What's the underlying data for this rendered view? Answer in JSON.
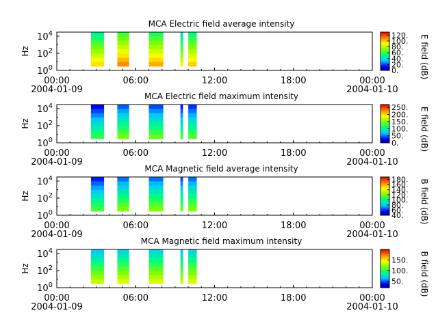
{
  "chart_data": [
    {
      "type": "heatmap",
      "title": "MCA  Electric field average intensity",
      "ylabel": "Hz",
      "ylim": [
        1,
        30000
      ],
      "yscale": "log",
      "y_ticks": [
        {
          "base": "10",
          "exp": "0"
        },
        {
          "base": "10",
          "exp": "2"
        },
        {
          "base": "10",
          "exp": "4"
        }
      ],
      "x_ticks": [
        "00:00",
        "06:00",
        "12:00",
        "18:00",
        "00:00"
      ],
      "x_dates": [
        "2004-01-09",
        "",
        "",
        "",
        "2004-01-10"
      ],
      "xlim_hours": [
        0,
        24
      ],
      "colorbar": {
        "label": "E field (dB)",
        "range": [
          0,
          130
        ],
        "ticks": [
          "0.",
          "20.",
          "40.",
          "60.",
          "80.",
          "100.",
          "120."
        ],
        "tick_values": [
          0,
          20,
          40,
          60,
          80,
          100,
          120
        ]
      },
      "segments": [
        {
          "start": 2.6,
          "end": 3.6,
          "freq_range": [
            3,
            30000
          ],
          "level": 72
        },
        {
          "start": 4.6,
          "end": 5.5,
          "freq_range": [
            3,
            30000
          ],
          "level": 85
        },
        {
          "start": 7.0,
          "end": 8.1,
          "freq_range": [
            3,
            30000
          ],
          "level": 80
        },
        {
          "start": 9.4,
          "end": 9.6,
          "freq_range": [
            3,
            30000
          ],
          "level": 65
        },
        {
          "start": 10.0,
          "end": 10.65,
          "freq_range": [
            3,
            30000
          ],
          "level": 75
        }
      ]
    },
    {
      "type": "heatmap",
      "title": "MCA  Electric field maximum intensity",
      "ylabel": "Hz",
      "ylim": [
        1,
        30000
      ],
      "yscale": "log",
      "y_ticks": [
        {
          "base": "10",
          "exp": "0"
        },
        {
          "base": "10",
          "exp": "2"
        },
        {
          "base": "10",
          "exp": "4"
        }
      ],
      "x_ticks": [
        "00:00",
        "06:00",
        "12:00",
        "18:00",
        "00:00"
      ],
      "x_dates": [
        "2004-01-09",
        "",
        "",
        "",
        "2004-01-10"
      ],
      "xlim_hours": [
        0,
        24
      ],
      "colorbar": {
        "label": "E field (dB)",
        "range": [
          0,
          270
        ],
        "ticks": [
          "0.",
          "50.",
          "100.",
          "150.",
          "200.",
          "250."
        ],
        "tick_values": [
          0,
          50,
          100,
          150,
          200,
          250
        ]
      },
      "segments": [
        {
          "start": 2.6,
          "end": 3.6,
          "freq_range": [
            3,
            30000
          ],
          "level": 75
        },
        {
          "start": 4.6,
          "end": 5.5,
          "freq_range": [
            3,
            30000
          ],
          "level": 95
        },
        {
          "start": 7.0,
          "end": 8.1,
          "freq_range": [
            3,
            30000
          ],
          "level": 90
        },
        {
          "start": 9.4,
          "end": 9.6,
          "freq_range": [
            3,
            30000
          ],
          "level": 80
        },
        {
          "start": 10.0,
          "end": 10.65,
          "freq_range": [
            3,
            30000
          ],
          "level": 85
        }
      ]
    },
    {
      "type": "heatmap",
      "title": "MCA  Magnetic field average intensity",
      "ylabel": "Hz",
      "ylim": [
        1,
        30000
      ],
      "yscale": "log",
      "y_ticks": [
        {
          "base": "10",
          "exp": "0"
        },
        {
          "base": "10",
          "exp": "2"
        },
        {
          "base": "10",
          "exp": "4"
        }
      ],
      "x_ticks": [
        "00:00",
        "06:00",
        "12:00",
        "18:00",
        "00:00"
      ],
      "x_dates": [
        "2004-01-09",
        "",
        "",
        "",
        "2004-01-10"
      ],
      "xlim_hours": [
        0,
        24
      ],
      "colorbar": {
        "label": "B field (dB)",
        "range": [
          40,
          190
        ],
        "ticks": [
          "40.",
          "60.",
          "80.",
          "100.",
          "120.",
          "140.",
          "160.",
          "180."
        ],
        "tick_values": [
          40,
          60,
          80,
          100,
          120,
          140,
          160,
          180
        ]
      },
      "segments": [
        {
          "start": 2.6,
          "end": 3.6,
          "freq_range": [
            3,
            30000
          ],
          "level": 85
        },
        {
          "start": 4.6,
          "end": 5.5,
          "freq_range": [
            3,
            30000
          ],
          "level": 95
        },
        {
          "start": 7.0,
          "end": 8.1,
          "freq_range": [
            3,
            30000
          ],
          "level": 95
        },
        {
          "start": 9.4,
          "end": 9.6,
          "freq_range": [
            3,
            30000
          ],
          "level": 90
        },
        {
          "start": 10.0,
          "end": 10.65,
          "freq_range": [
            3,
            30000
          ],
          "level": 95
        }
      ]
    },
    {
      "type": "heatmap",
      "title": "MCA  Magnetic field maximum intensity",
      "ylabel": "Hz",
      "ylim": [
        1,
        30000
      ],
      "yscale": "log",
      "y_ticks": [
        {
          "base": "10",
          "exp": "0"
        },
        {
          "base": "10",
          "exp": "2"
        },
        {
          "base": "10",
          "exp": "4"
        }
      ],
      "x_ticks": [
        "00:00",
        "06:00",
        "12:00",
        "18:00",
        "00:00"
      ],
      "x_dates": [
        "2004-01-09",
        "",
        "",
        "",
        "2004-01-10"
      ],
      "xlim_hours": [
        0,
        24
      ],
      "colorbar": {
        "label": "B field (dB)",
        "range": [
          20,
          200
        ],
        "ticks": [
          "50.",
          "100.",
          "150."
        ],
        "tick_values": [
          50,
          100,
          150
        ]
      },
      "segments": [
        {
          "start": 2.6,
          "end": 3.6,
          "freq_range": [
            3,
            30000
          ],
          "level": 100
        },
        {
          "start": 4.6,
          "end": 5.5,
          "freq_range": [
            3,
            30000
          ],
          "level": 105
        },
        {
          "start": 7.0,
          "end": 8.1,
          "freq_range": [
            3,
            30000
          ],
          "level": 105
        },
        {
          "start": 9.4,
          "end": 9.6,
          "freq_range": [
            3,
            30000
          ],
          "level": 100
        },
        {
          "start": 10.0,
          "end": 10.65,
          "freq_range": [
            3,
            30000
          ],
          "level": 105
        }
      ]
    }
  ]
}
